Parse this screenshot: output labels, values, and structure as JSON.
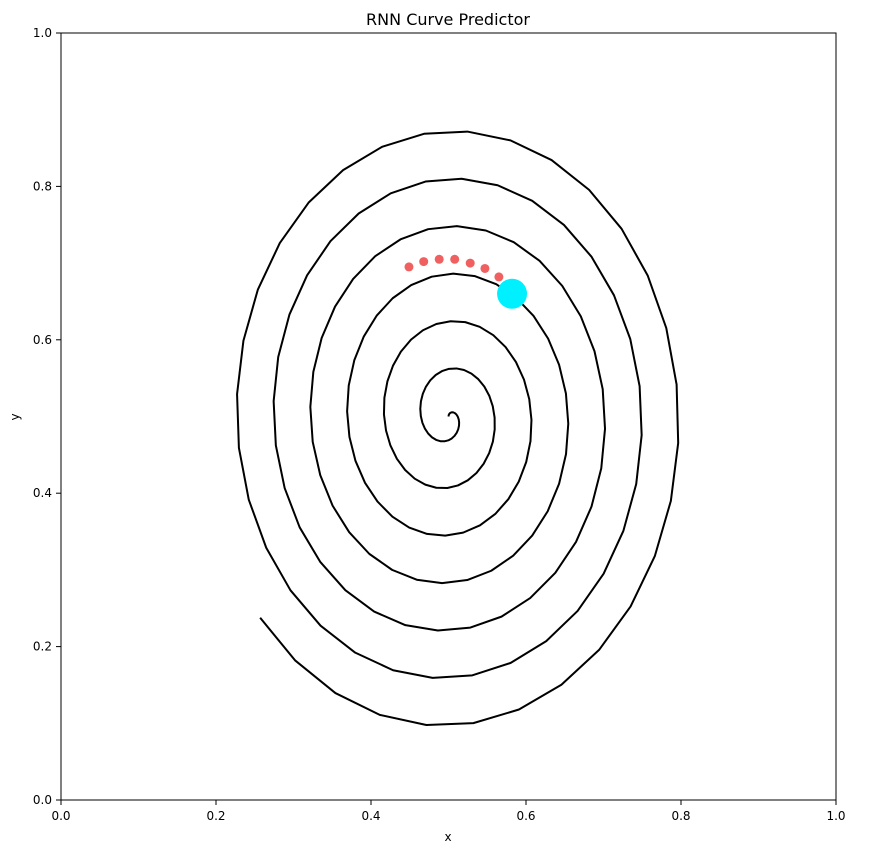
{
  "chart_data": {
    "type": "line",
    "title": "RNN Curve Predictor",
    "xlabel": "x",
    "ylabel": "y",
    "xlim": [
      0.0,
      1.0
    ],
    "ylim": [
      0.0,
      1.0
    ],
    "xticks": [
      0.0,
      0.2,
      0.4,
      0.6,
      0.8,
      1.0
    ],
    "yticks": [
      0.0,
      0.2,
      0.4,
      0.6,
      0.8,
      1.0
    ],
    "xtick_labels": [
      "0.0",
      "0.2",
      "0.4",
      "0.6",
      "0.8",
      "1.0"
    ],
    "ytick_labels": [
      "0.0",
      "0.2",
      "0.4",
      "0.6",
      "0.8",
      "1.0"
    ],
    "grid": false,
    "legend": false,
    "series": [
      {
        "kind": "spiral-curve",
        "color": "#000000",
        "spiral": {
          "center": [
            0.5,
            0.5
          ],
          "x_amplitude_per_turn": 0.0475,
          "y_amplitude_per_turn": 0.062,
          "start_angle_deg": 90,
          "turns": 6.64,
          "direction": "clockwise"
        }
      },
      {
        "kind": "predicted-points",
        "color": "#f06060",
        "points": [
          [
            0.449,
            0.695
          ],
          [
            0.468,
            0.702
          ],
          [
            0.488,
            0.705
          ],
          [
            0.508,
            0.705
          ],
          [
            0.528,
            0.7
          ],
          [
            0.547,
            0.693
          ],
          [
            0.565,
            0.682
          ],
          [
            0.581,
            0.669
          ]
        ]
      },
      {
        "kind": "current-position",
        "color": "#00f0ff",
        "point": [
          0.582,
          0.66
        ]
      }
    ]
  }
}
